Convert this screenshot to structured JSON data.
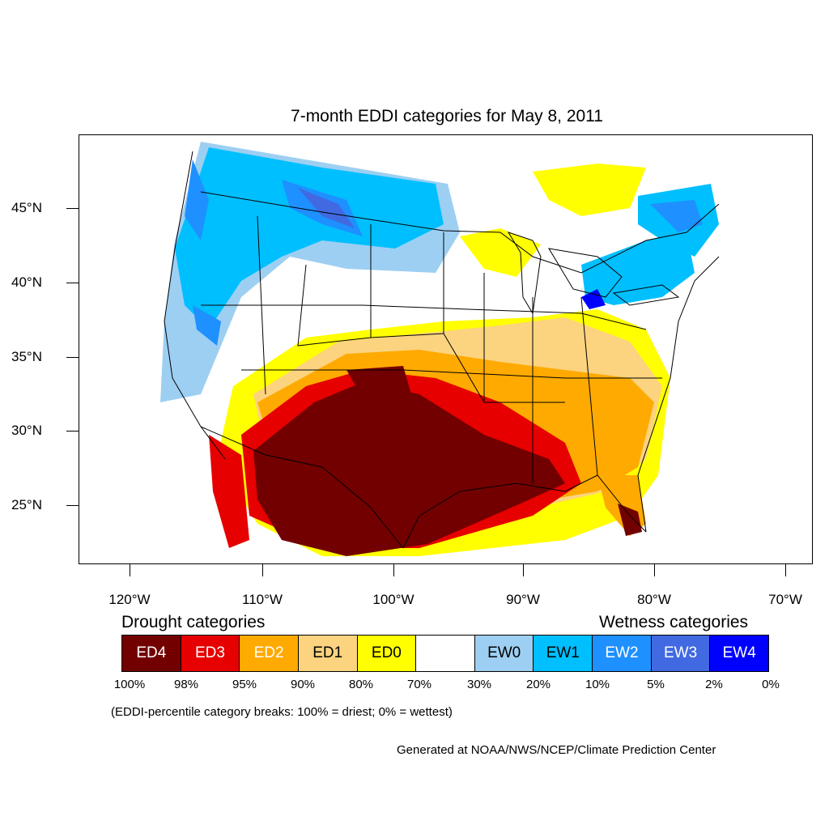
{
  "title": "7-month EDDI categories for May 8, 2011",
  "latitude_labels": [
    "45°N",
    "40°N",
    "35°N",
    "30°N",
    "25°N"
  ],
  "longitude_labels": [
    "120°W",
    "110°W",
    "100°W",
    "90°W",
    "80°W",
    "70°W"
  ],
  "legend": {
    "drought_heading": "Drought categories",
    "wetness_heading": "Wetness categories",
    "categories": [
      {
        "label": "ED4",
        "color": "#730000",
        "text_color": "#ffffff"
      },
      {
        "label": "ED3",
        "color": "#e60000",
        "text_color": "#ffffff"
      },
      {
        "label": "ED2",
        "color": "#ffaa00",
        "text_color": "#ffffff"
      },
      {
        "label": "ED1",
        "color": "#fcd37f",
        "text_color": "#000000"
      },
      {
        "label": "ED0",
        "color": "#ffff00",
        "text_color": "#000000"
      },
      {
        "label": "",
        "color": "#ffffff",
        "text_color": "#000000"
      },
      {
        "label": "EW0",
        "color": "#9dcff2",
        "text_color": "#000000"
      },
      {
        "label": "EW1",
        "color": "#00bfff",
        "text_color": "#000000"
      },
      {
        "label": "EW2",
        "color": "#1e90ff",
        "text_color": "#ffffff"
      },
      {
        "label": "EW3",
        "color": "#4169e1",
        "text_color": "#ffffff"
      },
      {
        "label": "EW4",
        "color": "#0000ff",
        "text_color": "#ffffff"
      }
    ],
    "percentile_breaks": [
      "100%",
      "98%",
      "95%",
      "90%",
      "80%",
      "70%",
      "30%",
      "20%",
      "10%",
      "5%",
      "2%",
      "0%"
    ]
  },
  "breaks_note": "(EDDI-percentile category breaks: 100% = driest; 0% = wettest)",
  "credit": "Generated at NOAA/NWS/NCEP/Climate Prediction Center"
}
